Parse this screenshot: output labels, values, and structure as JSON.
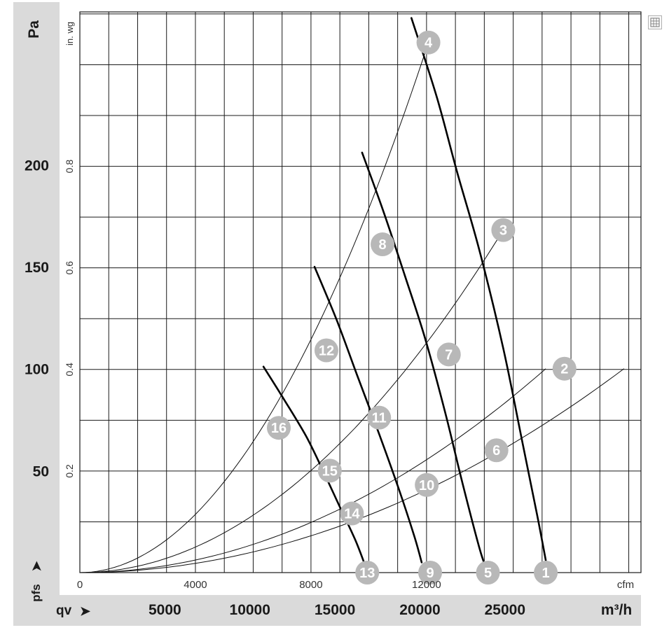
{
  "chart_data": {
    "type": "line",
    "title": "",
    "y_unit_primary": "Pa",
    "y_unit_secondary": "in. wg",
    "y_symbol": "pfs",
    "x_unit_primary": "m³/h",
    "x_unit_secondary": "cfm",
    "x_symbol": "qv",
    "xlim": [
      0,
      33000
    ],
    "ylim": [
      0,
      275
    ],
    "grid": true,
    "y_ticks_pa": [
      {
        "value": 50,
        "label": "50"
      },
      {
        "value": 100,
        "label": "100"
      },
      {
        "value": 150,
        "label": "150"
      },
      {
        "value": 200,
        "label": "200"
      }
    ],
    "y_ticks_inwg": [
      {
        "value": 0.2,
        "label": "0.2"
      },
      {
        "value": 0.4,
        "label": "0.4"
      },
      {
        "value": 0.6,
        "label": "0.6"
      },
      {
        "value": 0.8,
        "label": "0.8"
      }
    ],
    "x_ticks_m3h": [
      {
        "value": 5000,
        "label": "5000"
      },
      {
        "value": 10000,
        "label": "10000"
      },
      {
        "value": 15000,
        "label": "15000"
      },
      {
        "value": 20000,
        "label": "20000"
      },
      {
        "value": 25000,
        "label": "25000"
      }
    ],
    "x_ticks_cfm": [
      {
        "value": 0,
        "label": "0"
      },
      {
        "value": 4000,
        "label": "4000"
      },
      {
        "value": 8000,
        "label": "8000"
      },
      {
        "value": 12000,
        "label": "12000"
      }
    ],
    "fan_curves": [
      {
        "name": "",
        "points": [
          [
            19500,
            272
          ],
          [
            21000,
            233
          ],
          [
            22200,
            196
          ],
          [
            23500,
            158
          ],
          [
            24900,
            110
          ],
          [
            26000,
            65
          ],
          [
            26900,
            28
          ],
          [
            27400,
            6
          ]
        ]
      },
      {
        "name": "",
        "points": [
          [
            16600,
            206
          ],
          [
            17900,
            176
          ],
          [
            19100,
            146
          ],
          [
            20300,
            115
          ],
          [
            21500,
            78
          ],
          [
            22500,
            44
          ],
          [
            23500,
            12
          ],
          [
            23900,
            2
          ]
        ]
      },
      {
        "name": "",
        "points": [
          [
            13800,
            150
          ],
          [
            15100,
            124
          ],
          [
            16300,
            97
          ],
          [
            17600,
            68
          ],
          [
            18800,
            40
          ],
          [
            19700,
            17
          ],
          [
            20100,
            5
          ]
        ]
      },
      {
        "name": "",
        "points": [
          [
            10800,
            101
          ],
          [
            12000,
            85
          ],
          [
            13300,
            67
          ],
          [
            14300,
            50
          ],
          [
            15300,
            32
          ],
          [
            16200,
            16
          ],
          [
            16800,
            3
          ]
        ]
      }
    ],
    "system_curves": [
      {
        "name": "",
        "through": [
          20500,
          260
        ]
      },
      {
        "name": "",
        "through": [
          24900,
          168
        ]
      },
      {
        "name": "",
        "through": [
          27400,
          100
        ]
      },
      {
        "name": "",
        "through": [
          32000,
          100
        ]
      }
    ],
    "operating_points": [
      {
        "label": "1",
        "x": 27400,
        "y": 0
      },
      {
        "label": "2",
        "x": 28500,
        "y": 100
      },
      {
        "label": "3",
        "x": 24900,
        "y": 168
      },
      {
        "label": "4",
        "x": 20500,
        "y": 260
      },
      {
        "label": "5",
        "x": 24000,
        "y": 0
      },
      {
        "label": "6",
        "x": 24500,
        "y": 60
      },
      {
        "label": "7",
        "x": 21700,
        "y": 107
      },
      {
        "label": "8",
        "x": 17800,
        "y": 161
      },
      {
        "label": "9",
        "x": 20600,
        "y": 0
      },
      {
        "label": "10",
        "x": 20400,
        "y": 43
      },
      {
        "label": "11",
        "x": 17600,
        "y": 76
      },
      {
        "label": "12",
        "x": 14500,
        "y": 109
      },
      {
        "label": "13",
        "x": 16900,
        "y": 0
      },
      {
        "label": "14",
        "x": 16000,
        "y": 29
      },
      {
        "label": "15",
        "x": 14700,
        "y": 50
      },
      {
        "label": "16",
        "x": 11700,
        "y": 71
      }
    ],
    "colors": {
      "band": "#dadada",
      "grid": "#1a1a1a",
      "fan_curve": "#000000",
      "system_curve": "#111111",
      "marker": "#b8b8b8",
      "marker_text": "#ffffff"
    }
  },
  "icons": {
    "corner": "fullscreen-icon"
  }
}
